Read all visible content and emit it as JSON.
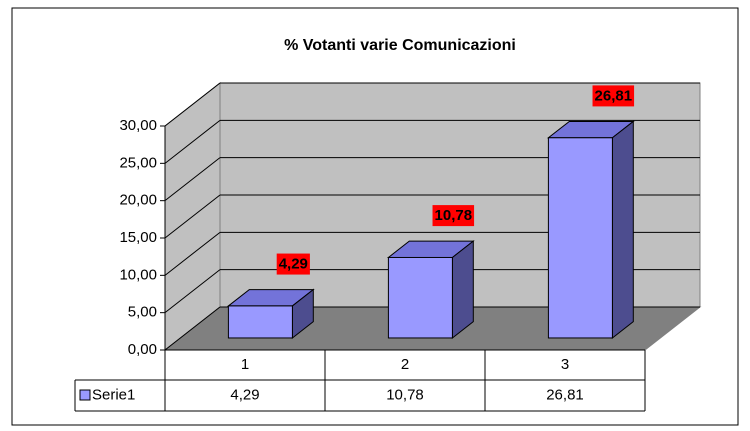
{
  "chart_data": {
    "type": "bar3d",
    "title": "% Votanti varie Comunicazioni",
    "categories": [
      "1",
      "2",
      "3"
    ],
    "series": [
      {
        "name": "Serie1",
        "color": "#9999ff",
        "values": [
          4.29,
          10.78,
          26.81
        ],
        "value_labels": [
          "4,29",
          "10,78",
          "26,81"
        ]
      }
    ],
    "ylim": [
      0,
      30
    ],
    "yticks": [
      {
        "value": 0,
        "label": "0,00"
      },
      {
        "value": 5,
        "label": "5,00"
      },
      {
        "value": 10,
        "label": "10,00"
      },
      {
        "value": 15,
        "label": "15,00"
      },
      {
        "value": 20,
        "label": "20,00"
      },
      {
        "value": 25,
        "label": "25,00"
      },
      {
        "value": 30,
        "label": "30,00"
      }
    ],
    "grid": true,
    "label_color": "#ff0000"
  }
}
